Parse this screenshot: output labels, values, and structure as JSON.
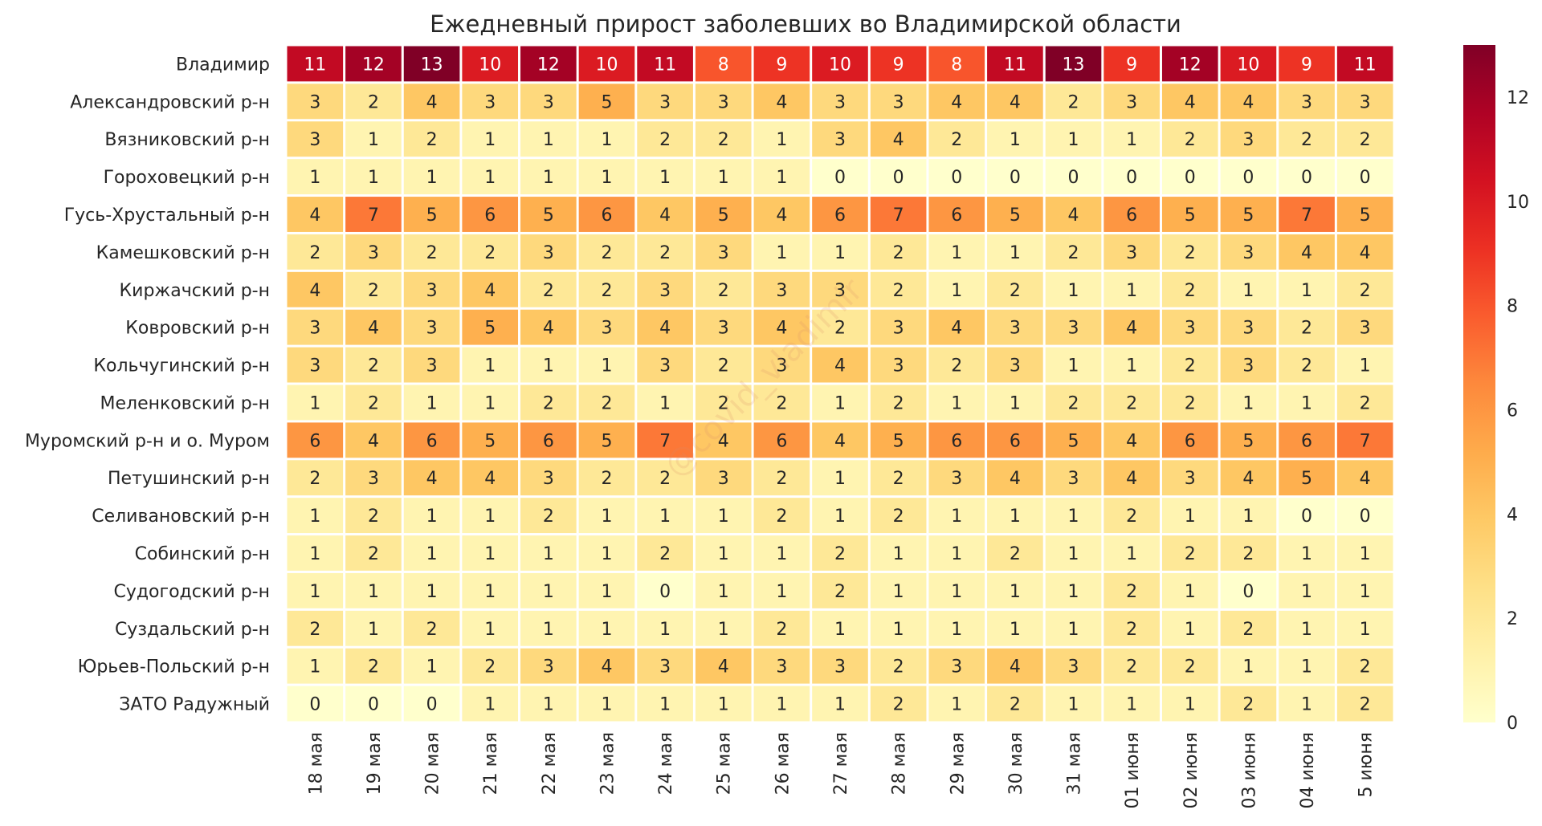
{
  "chart_data": {
    "type": "heatmap",
    "title": "Ежедневный прирост заболевших во Владимирской области",
    "xlabel": "",
    "ylabel": "",
    "watermark": "@covid_vladimir",
    "rows": [
      "Владимир",
      "Александровский р-н",
      "Вязниковский р-н",
      "Гороховецкий р-н",
      "Гусь-Хрустальный р-н",
      "Камешковский р-н",
      "Киржачский р-н",
      "Ковровский р-н",
      "Кольчугинский р-н",
      "Меленковский р-н",
      "Муромский р-н и о. Муром",
      "Петушинский р-н",
      "Селивановский р-н",
      "Собинский р-н",
      "Судогодский р-н",
      "Суздальский р-н",
      "Юрьев-Польский р-н",
      "ЗАТО Радужный"
    ],
    "columns": [
      "18 мая",
      "19 мая",
      "20 мая",
      "21 мая",
      "22 мая",
      "23 мая",
      "24 мая",
      "25 мая",
      "26 мая",
      "27 мая",
      "28 мая",
      "29 мая",
      "30 мая",
      "31 мая",
      "01 июня",
      "02 июня",
      "03 июня",
      "04 июня",
      "5 июня"
    ],
    "values": [
      [
        11,
        12,
        13,
        10,
        12,
        10,
        11,
        8,
        9,
        10,
        9,
        8,
        11,
        13,
        9,
        12,
        10,
        9,
        11
      ],
      [
        3,
        2,
        4,
        3,
        3,
        5,
        3,
        3,
        4,
        3,
        3,
        4,
        4,
        2,
        3,
        4,
        4,
        3,
        3
      ],
      [
        3,
        1,
        2,
        1,
        1,
        1,
        2,
        2,
        1,
        3,
        4,
        2,
        1,
        1,
        1,
        2,
        3,
        2,
        2
      ],
      [
        1,
        1,
        1,
        1,
        1,
        1,
        1,
        1,
        1,
        0,
        0,
        0,
        0,
        0,
        0,
        0,
        0,
        0,
        0
      ],
      [
        4,
        7,
        5,
        6,
        5,
        6,
        4,
        5,
        4,
        6,
        7,
        6,
        5,
        4,
        6,
        5,
        5,
        7,
        5
      ],
      [
        2,
        3,
        2,
        2,
        3,
        2,
        2,
        3,
        1,
        1,
        2,
        1,
        1,
        2,
        3,
        2,
        3,
        4,
        4
      ],
      [
        4,
        2,
        3,
        4,
        2,
        2,
        3,
        2,
        3,
        3,
        2,
        1,
        2,
        1,
        1,
        2,
        1,
        1,
        2
      ],
      [
        3,
        4,
        3,
        5,
        4,
        3,
        4,
        3,
        4,
        2,
        3,
        4,
        3,
        3,
        4,
        3,
        3,
        2,
        3
      ],
      [
        3,
        2,
        3,
        1,
        1,
        1,
        3,
        2,
        3,
        4,
        3,
        2,
        3,
        1,
        1,
        2,
        3,
        2,
        1
      ],
      [
        1,
        2,
        1,
        1,
        2,
        2,
        1,
        2,
        2,
        1,
        2,
        1,
        1,
        2,
        2,
        2,
        1,
        1,
        2
      ],
      [
        6,
        4,
        6,
        5,
        6,
        5,
        7,
        4,
        6,
        4,
        5,
        6,
        6,
        5,
        4,
        6,
        5,
        6,
        7
      ],
      [
        2,
        3,
        4,
        4,
        3,
        2,
        2,
        3,
        2,
        1,
        2,
        3,
        4,
        3,
        4,
        3,
        4,
        5,
        4
      ],
      [
        1,
        2,
        1,
        1,
        2,
        1,
        1,
        1,
        2,
        1,
        2,
        1,
        1,
        1,
        2,
        1,
        1,
        0,
        0
      ],
      [
        1,
        2,
        1,
        1,
        1,
        1,
        2,
        1,
        1,
        2,
        1,
        1,
        2,
        1,
        1,
        2,
        2,
        1,
        1
      ],
      [
        1,
        1,
        1,
        1,
        1,
        1,
        0,
        1,
        1,
        2,
        1,
        1,
        1,
        1,
        2,
        1,
        0,
        1,
        1
      ],
      [
        2,
        1,
        2,
        1,
        1,
        1,
        1,
        1,
        2,
        1,
        1,
        1,
        1,
        1,
        2,
        1,
        2,
        1,
        1
      ],
      [
        1,
        2,
        1,
        2,
        3,
        4,
        3,
        4,
        3,
        3,
        2,
        3,
        4,
        3,
        2,
        2,
        1,
        1,
        2
      ],
      [
        0,
        0,
        0,
        1,
        1,
        1,
        1,
        1,
        1,
        1,
        2,
        1,
        2,
        1,
        1,
        1,
        2,
        1,
        2
      ]
    ],
    "vmin": 0,
    "vmax": 13,
    "colormap": "YlOrRd",
    "colorbar_ticks": [
      0,
      2,
      4,
      6,
      8,
      10,
      12
    ]
  },
  "colors": {
    "background": "#ffffff",
    "cell_border": "#ffffff",
    "text_dark": "#262626",
    "text_light": "#ffffff",
    "colormap_stops": [
      "#ffffcc",
      "#fff1a9",
      "#fee087",
      "#fec965",
      "#feab4b",
      "#fd893c",
      "#fa5c2e",
      "#ec3023",
      "#d31121",
      "#af0225",
      "#800026"
    ]
  }
}
